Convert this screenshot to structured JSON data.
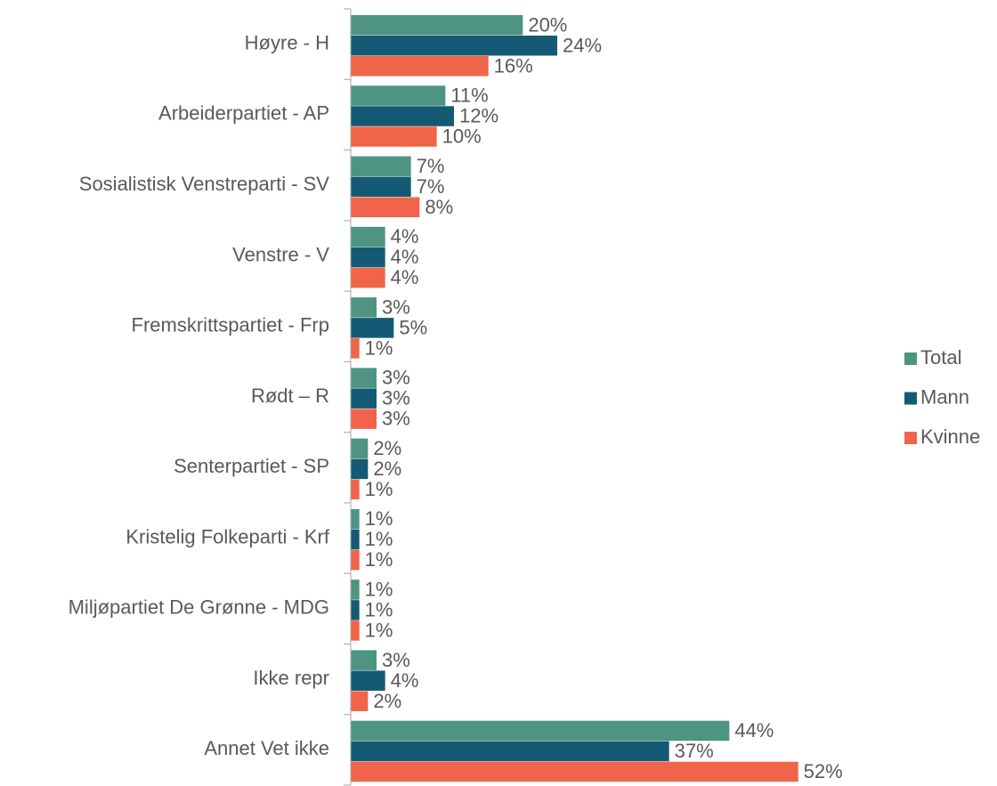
{
  "chart_data": {
    "type": "bar",
    "orientation": "horizontal",
    "categories": [
      "Høyre - H",
      "Arbeiderpartiet - AP",
      "Sosialistisk Venstreparti - SV",
      "Venstre - V",
      "Fremskrittspartiet - Frp",
      "Rødt – R",
      "Senterpartiet - SP",
      "Kristelig Folkeparti - Krf",
      "Miljøpartiet De Grønne - MDG",
      "Ikke repr ",
      "Annet Vet ikke"
    ],
    "series": [
      {
        "name": "Total",
        "color": "#4e9483",
        "values": [
          20,
          11,
          7,
          4,
          3,
          3,
          2,
          1,
          1,
          3,
          44
        ],
        "value_labels": [
          "20%",
          "11%",
          "7%",
          "4%",
          "3%",
          "3%",
          "2%",
          "1%",
          "1%",
          "3%",
          "44%"
        ]
      },
      {
        "name": "Mann",
        "color": "#155a74",
        "values": [
          24,
          12,
          7,
          4,
          5,
          3,
          2,
          1,
          1,
          4,
          37
        ],
        "value_labels": [
          "24%",
          "12%",
          "7%",
          "4%",
          "5%",
          "3%",
          "2%",
          "1%",
          "1%",
          "4%",
          "37%"
        ]
      },
      {
        "name": "Kvinne",
        "color": "#f0654a",
        "values": [
          16,
          10,
          8,
          4,
          1,
          3,
          1,
          1,
          1,
          2,
          52
        ],
        "value_labels": [
          "16%",
          "10%",
          "8%",
          "4%",
          "1%",
          "3%",
          "1%",
          "1%",
          "1%",
          "2%",
          "52%"
        ]
      }
    ],
    "xlim": [
      0,
      60
    ],
    "legend": "right"
  }
}
